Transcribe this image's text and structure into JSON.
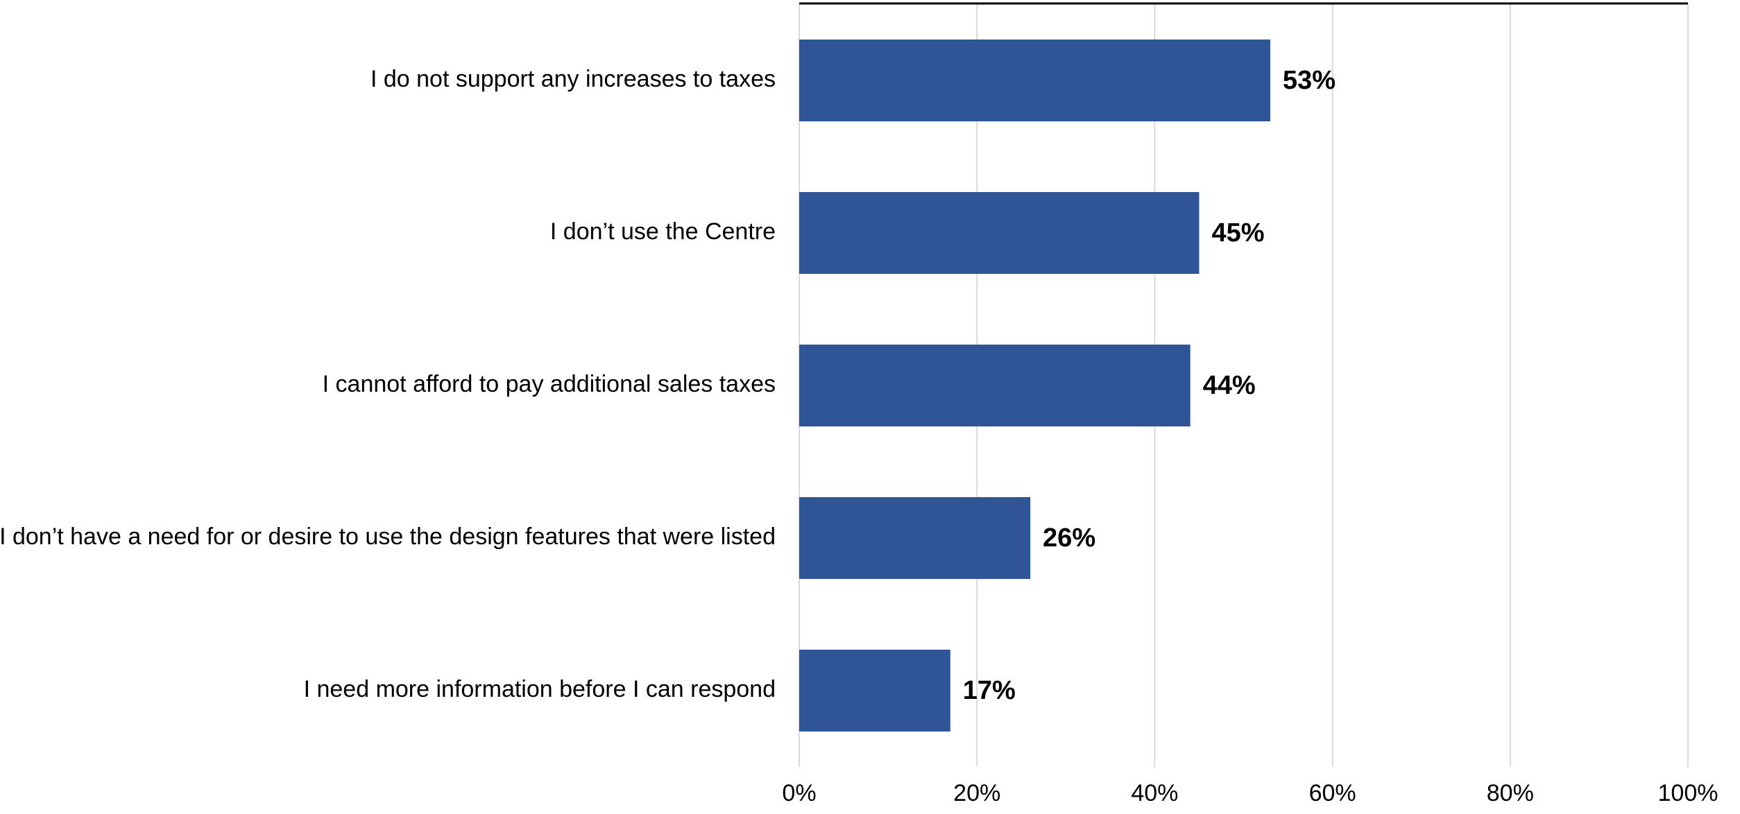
{
  "chart_data": {
    "type": "bar",
    "orientation": "horizontal",
    "title": "",
    "xlabel": "",
    "ylabel": "",
    "categories": [
      "I do not support any increases to taxes",
      "I don’t use the Centre",
      "I cannot afford to pay additional sales taxes",
      "I don’t have a need for or desire to use the design features that were listed",
      "I need more information before I can respond"
    ],
    "values": [
      53,
      45,
      44,
      26,
      17
    ],
    "value_labels": [
      "53%",
      "45%",
      "44%",
      "26%",
      "17%"
    ],
    "xlim": [
      0,
      100
    ],
    "xticks": [
      0,
      20,
      40,
      60,
      80,
      100
    ],
    "xtick_labels": [
      "0%",
      "20%",
      "40%",
      "60%",
      "80%",
      "100%"
    ],
    "grid": "vertical",
    "legend": "none",
    "bar_color": "#2f5597"
  }
}
